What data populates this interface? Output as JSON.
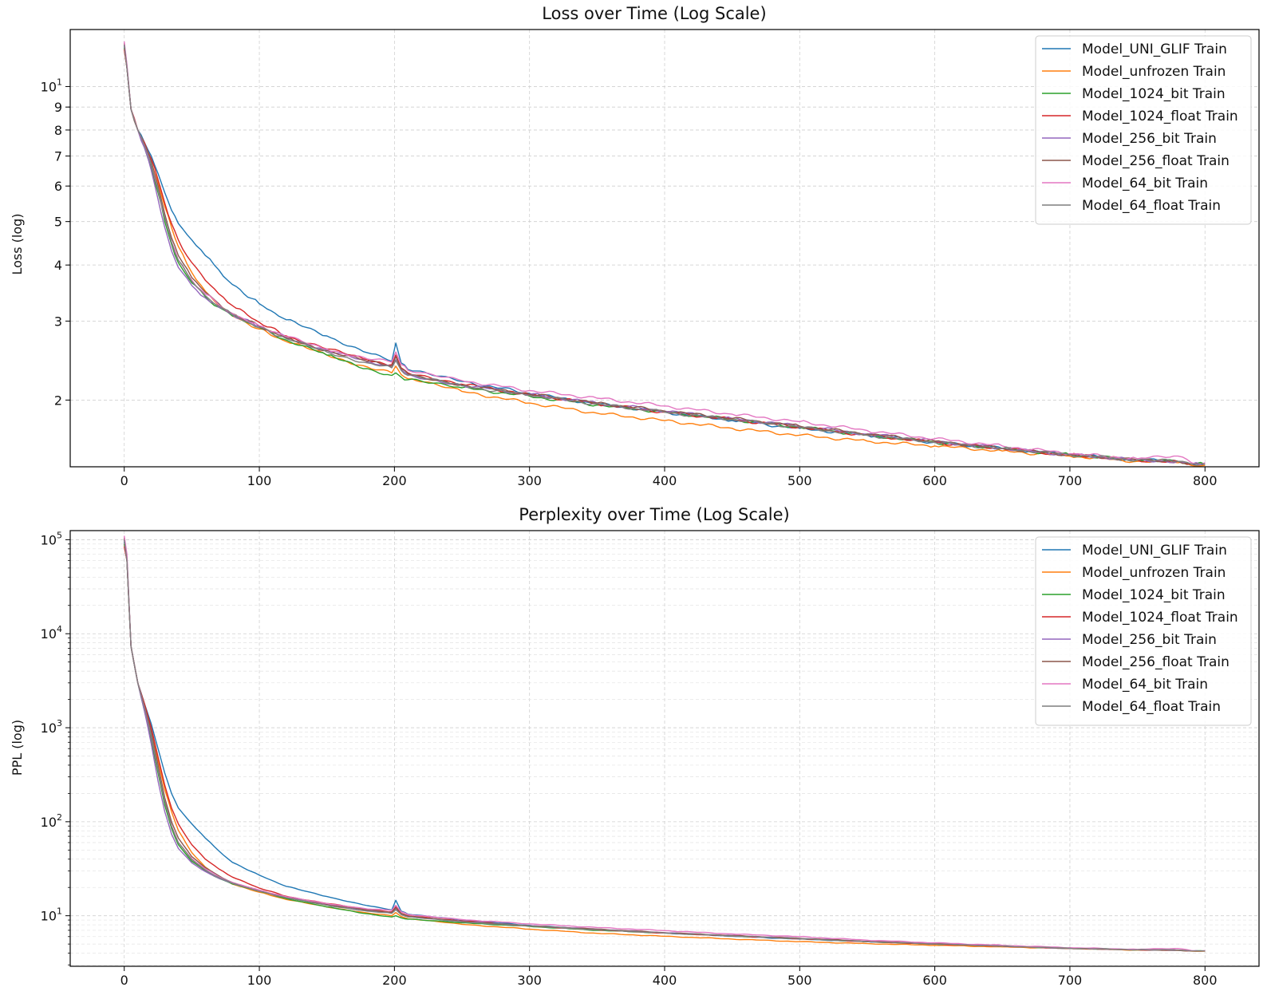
{
  "chart_data": [
    {
      "type": "line",
      "title": "Loss over Time (Log Scale)",
      "xlabel": "",
      "ylabel": "Loss (log)",
      "yscale": "log",
      "xlim": [
        -40,
        840
      ],
      "ylim": [
        1.42,
        13.4
      ],
      "grid": true,
      "legend_position": "top-right",
      "x_ticks": [
        0,
        100,
        200,
        300,
        400,
        500,
        600,
        700,
        800
      ],
      "x_tick_labels": [
        "0",
        "100",
        "200",
        "300",
        "400",
        "500",
        "600",
        "700",
        "800"
      ],
      "y_ticks": [
        2,
        3,
        4,
        5,
        6,
        7,
        8,
        9,
        10
      ],
      "y_tick_labels": [
        "2",
        "3",
        "4",
        "5",
        "6",
        "7",
        "8",
        "9",
        "10"
      ],
      "x": [
        0,
        2,
        5,
        10,
        15,
        20,
        25,
        30,
        35,
        40,
        50,
        60,
        70,
        80,
        100,
        120,
        150,
        180,
        198,
        201,
        205,
        210,
        250,
        300,
        350,
        400,
        450,
        500,
        550,
        600,
        650,
        700,
        750,
        780,
        790,
        800
      ],
      "series": [
        {
          "name": "Model_UNI_GLIF Train",
          "color": "#1f77b4",
          "values": [
            12.3,
            11.0,
            8.9,
            8.0,
            7.5,
            7.0,
            6.4,
            5.8,
            5.3,
            4.95,
            4.55,
            4.2,
            3.9,
            3.62,
            3.28,
            3.02,
            2.78,
            2.55,
            2.44,
            2.68,
            2.42,
            2.34,
            2.2,
            2.07,
            1.96,
            1.88,
            1.8,
            1.73,
            1.67,
            1.61,
            1.56,
            1.51,
            1.47,
            1.46,
            1.44,
            1.44
          ]
        },
        {
          "name": "Model_unfrozen Train",
          "color": "#ff7f0e",
          "values": [
            12.2,
            11.0,
            8.9,
            8.0,
            7.4,
            6.8,
            6.1,
            5.4,
            4.85,
            4.4,
            3.85,
            3.5,
            3.25,
            3.08,
            2.88,
            2.7,
            2.52,
            2.37,
            2.3,
            2.38,
            2.28,
            2.23,
            2.09,
            1.97,
            1.87,
            1.8,
            1.73,
            1.67,
            1.62,
            1.58,
            1.54,
            1.5,
            1.46,
            1.45,
            1.43,
            1.43
          ]
        },
        {
          "name": "Model_1024_bit Train",
          "color": "#2ca02c",
          "values": [
            12.2,
            11.0,
            8.9,
            8.0,
            7.3,
            6.6,
            5.8,
            5.0,
            4.45,
            4.05,
            3.65,
            3.4,
            3.22,
            3.08,
            2.9,
            2.72,
            2.52,
            2.35,
            2.27,
            2.3,
            2.25,
            2.22,
            2.13,
            2.04,
            1.95,
            1.88,
            1.81,
            1.74,
            1.67,
            1.61,
            1.56,
            1.51,
            1.47,
            1.46,
            1.44,
            1.44
          ]
        },
        {
          "name": "Model_1024_float Train",
          "color": "#d62728",
          "values": [
            12.1,
            11.0,
            8.9,
            8.0,
            7.5,
            6.9,
            6.2,
            5.5,
            4.95,
            4.55,
            4.05,
            3.7,
            3.45,
            3.25,
            2.98,
            2.78,
            2.6,
            2.46,
            2.4,
            2.52,
            2.36,
            2.3,
            2.17,
            2.06,
            1.96,
            1.88,
            1.81,
            1.74,
            1.67,
            1.61,
            1.56,
            1.51,
            1.47,
            1.46,
            1.44,
            1.44
          ]
        },
        {
          "name": "Model_256_bit Train",
          "color": "#9467bd",
          "values": [
            12.4,
            11.0,
            8.9,
            8.0,
            7.3,
            6.5,
            5.6,
            4.85,
            4.3,
            3.95,
            3.6,
            3.38,
            3.22,
            3.1,
            2.92,
            2.76,
            2.58,
            2.43,
            2.38,
            2.46,
            2.34,
            2.28,
            2.16,
            2.06,
            1.97,
            1.89,
            1.82,
            1.75,
            1.68,
            1.62,
            1.56,
            1.51,
            1.47,
            1.46,
            1.44,
            1.44
          ]
        },
        {
          "name": "Model_256_float Train",
          "color": "#8c564b",
          "values": [
            12.5,
            11.1,
            8.9,
            8.0,
            7.4,
            6.8,
            6.0,
            5.2,
            4.6,
            4.2,
            3.75,
            3.48,
            3.28,
            3.12,
            2.92,
            2.75,
            2.58,
            2.44,
            2.38,
            2.5,
            2.35,
            2.29,
            2.16,
            2.06,
            1.97,
            1.89,
            1.82,
            1.75,
            1.68,
            1.62,
            1.56,
            1.51,
            1.47,
            1.46,
            1.44,
            1.44
          ]
        },
        {
          "name": "Model_64_bit Train",
          "color": "#e377c2",
          "values": [
            12.6,
            11.2,
            8.9,
            8.0,
            7.4,
            6.7,
            5.9,
            5.1,
            4.5,
            4.1,
            3.7,
            3.45,
            3.26,
            3.12,
            2.93,
            2.77,
            2.6,
            2.47,
            2.43,
            2.56,
            2.4,
            2.33,
            2.21,
            2.1,
            2.02,
            1.94,
            1.86,
            1.79,
            1.71,
            1.64,
            1.58,
            1.52,
            1.48,
            1.5,
            1.45,
            1.45
          ]
        },
        {
          "name": "Model_64_float Train",
          "color": "#7f7f7f",
          "values": [
            12.4,
            11.0,
            8.9,
            8.0,
            7.4,
            6.7,
            5.9,
            5.1,
            4.5,
            4.1,
            3.68,
            3.42,
            3.24,
            3.1,
            2.9,
            2.74,
            2.56,
            2.42,
            2.36,
            2.45,
            2.33,
            2.27,
            2.15,
            2.05,
            1.96,
            1.88,
            1.81,
            1.74,
            1.67,
            1.61,
            1.56,
            1.51,
            1.47,
            1.46,
            1.44,
            1.44
          ]
        }
      ]
    },
    {
      "type": "line",
      "title": "Perplexity over Time (Log Scale)",
      "xlabel": "",
      "ylabel": "PPL (log)",
      "yscale": "log",
      "xlim": [
        -40,
        840
      ],
      "ylim": [
        2.9,
        125000
      ],
      "grid": true,
      "legend_position": "top-right",
      "x_ticks": [
        0,
        100,
        200,
        300,
        400,
        500,
        600,
        700,
        800
      ],
      "x_tick_labels": [
        "0",
        "100",
        "200",
        "300",
        "400",
        "500",
        "600",
        "700",
        "800"
      ],
      "y_ticks": [
        10,
        100,
        1000,
        10000,
        100000
      ],
      "y_tick_labels": [
        "10",
        "10",
        "10",
        "10",
        "10"
      ],
      "y_tick_exponents": [
        "1",
        "2",
        "3",
        "4",
        "5"
      ],
      "x": [
        0,
        2,
        5,
        10,
        15,
        20,
        25,
        30,
        35,
        40,
        50,
        60,
        70,
        80,
        100,
        120,
        150,
        180,
        198,
        201,
        205,
        210,
        250,
        300,
        350,
        400,
        450,
        500,
        550,
        600,
        650,
        700,
        750,
        780,
        790,
        800
      ],
      "series": [
        {
          "name": "Model_UNI_GLIF Train",
          "color": "#1f77b4",
          "values": [
            95000,
            60000,
            7300,
            3000,
            1800,
            1100,
            600,
            330,
            200,
            140,
            95,
            67,
            49,
            37,
            27,
            20.5,
            16,
            12.8,
            11.5,
            14.6,
            11.2,
            10.4,
            9.0,
            7.9,
            7.1,
            6.55,
            6.05,
            5.65,
            5.3,
            5.0,
            4.75,
            4.5,
            4.35,
            4.3,
            4.22,
            4.22
          ]
        },
        {
          "name": "Model_unfrozen Train",
          "color": "#ff7f0e",
          "values": [
            90000,
            60000,
            7300,
            3000,
            1650,
            900,
            450,
            220,
            128,
            81,
            47,
            33,
            26,
            21.7,
            17.8,
            14.9,
            12.4,
            10.7,
            10.0,
            10.8,
            9.8,
            9.3,
            8.1,
            7.2,
            6.5,
            6.05,
            5.65,
            5.3,
            5.05,
            4.85,
            4.66,
            4.48,
            4.31,
            4.27,
            4.2,
            4.2
          ]
        },
        {
          "name": "Model_1024_bit Train",
          "color": "#2ca02c",
          "values": [
            90000,
            60000,
            7300,
            3000,
            1500,
            740,
            330,
            150,
            85,
            57,
            38,
            30,
            25,
            21.8,
            18.2,
            15.2,
            12.4,
            10.5,
            9.7,
            10.0,
            9.5,
            9.2,
            8.4,
            7.7,
            7.0,
            6.55,
            6.1,
            5.7,
            5.3,
            5.0,
            4.75,
            4.5,
            4.35,
            4.3,
            4.22,
            4.22
          ]
        },
        {
          "name": "Model_1024_float Train",
          "color": "#d62728",
          "values": [
            85000,
            60000,
            7300,
            3000,
            1800,
            1000,
            490,
            245,
            140,
            95,
            57,
            40,
            31.5,
            25.8,
            19.7,
            16.1,
            13.5,
            11.7,
            11.0,
            12.5,
            10.6,
            10.0,
            8.8,
            7.8,
            7.1,
            6.55,
            6.1,
            5.7,
            5.3,
            5.0,
            4.75,
            4.5,
            4.35,
            4.3,
            4.22,
            4.22
          ]
        },
        {
          "name": "Model_256_bit Train",
          "color": "#9467bd",
          "values": [
            100000,
            60000,
            7300,
            3000,
            1500,
            670,
            270,
            128,
            74,
            52,
            36.5,
            29.5,
            25,
            22.2,
            18.5,
            15.8,
            13.2,
            11.4,
            10.8,
            11.7,
            10.4,
            9.8,
            8.7,
            7.8,
            7.2,
            6.6,
            6.15,
            5.75,
            5.35,
            5.05,
            4.75,
            4.5,
            4.35,
            4.3,
            4.22,
            4.22
          ]
        },
        {
          "name": "Model_256_float Train",
          "color": "#8c564b",
          "values": [
            105000,
            65000,
            7300,
            3000,
            1650,
            900,
            400,
            180,
            100,
            67,
            42.5,
            32.5,
            26.6,
            22.6,
            18.5,
            15.6,
            13.2,
            11.5,
            10.8,
            12.2,
            10.5,
            9.9,
            8.7,
            7.8,
            7.2,
            6.6,
            6.15,
            5.75,
            5.35,
            5.05,
            4.75,
            4.5,
            4.35,
            4.3,
            4.22,
            4.22
          ]
        },
        {
          "name": "Model_64_bit Train",
          "color": "#e377c2",
          "values": [
            110000,
            70000,
            7300,
            3000,
            1650,
            810,
            360,
            165,
            90,
            60,
            40.5,
            31.5,
            26,
            22.6,
            18.7,
            15.9,
            13.5,
            11.8,
            11.4,
            12.9,
            11.0,
            10.3,
            9.1,
            8.2,
            7.5,
            6.95,
            6.4,
            6.0,
            5.5,
            5.15,
            4.85,
            4.57,
            4.39,
            4.48,
            4.26,
            4.26
          ]
        },
        {
          "name": "Model_64_float Train",
          "color": "#7f7f7f",
          "values": [
            100000,
            60000,
            7300,
            3000,
            1650,
            810,
            360,
            165,
            90,
            60,
            39.6,
            30.6,
            25.5,
            22.2,
            18.2,
            15.5,
            12.9,
            11.2,
            10.6,
            11.6,
            10.3,
            9.7,
            8.6,
            7.8,
            7.1,
            6.55,
            6.1,
            5.7,
            5.3,
            5.0,
            4.75,
            4.5,
            4.35,
            4.3,
            4.22,
            4.22
          ]
        }
      ]
    }
  ]
}
